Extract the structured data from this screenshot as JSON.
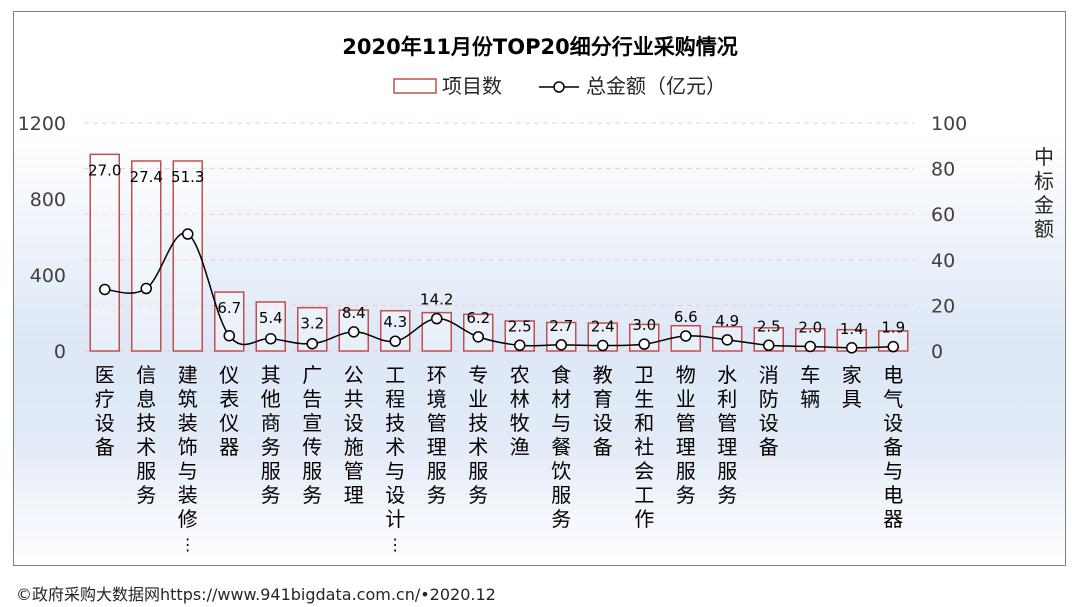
{
  "chart_data": {
    "type": "bar",
    "title": "2020年11月份TOP20细分行业采购情况",
    "categories": [
      "医疗设备",
      "信息技术服务",
      "建筑装饰与装修…",
      "仪表仪器",
      "其他商务服务",
      "广告宣传服务",
      "公共设施管理",
      "工程技术与设计…",
      "环境管理服务",
      "专业技术服务",
      "农林牧渔",
      "食材与餐饮服务",
      "教育设备",
      "卫生和社会工作",
      "物业管理服务",
      "水利管理服务",
      "消防设备",
      "车辆",
      "家具",
      "电气设备与电器"
    ],
    "series": [
      {
        "name": "项目数",
        "chart": "bar",
        "axis": "left",
        "values": [
          1035,
          1000,
          1000,
          310,
          258,
          228,
          215,
          212,
          202,
          193,
          158,
          150,
          147,
          140,
          133,
          128,
          122,
          117,
          112,
          106
        ]
      },
      {
        "name": "总金额（亿元）",
        "chart": "line",
        "axis": "right",
        "values": [
          27.0,
          27.4,
          51.3,
          6.7,
          5.4,
          3.2,
          8.4,
          4.3,
          14.2,
          6.2,
          2.5,
          2.7,
          2.4,
          3.0,
          6.6,
          4.9,
          2.5,
          2.0,
          1.4,
          1.9
        ],
        "labels": [
          "27.0",
          "27.4",
          "51.3",
          "6.7",
          "5.4",
          "3.2",
          "8.4",
          "4.3",
          "14.2",
          "6.2",
          "2.5",
          "2.7",
          "2.4",
          "3.0",
          "6.6",
          "4.9",
          "2.5",
          "2.0",
          "1.4",
          "1.9"
        ]
      }
    ],
    "y_left": {
      "ticks": [
        "0",
        "400",
        "800",
        "1200"
      ],
      "ylim": [
        0,
        1200
      ]
    },
    "y_right": {
      "label": "中标金额",
      "ticks": [
        "0",
        "20",
        "40",
        "60",
        "80",
        "100"
      ],
      "ylim": [
        0,
        100
      ]
    },
    "legend": {
      "position": "top-center",
      "items": [
        "项目数",
        "总金额（亿元）"
      ]
    },
    "grid": "dashed-horizontal",
    "colors": {
      "bar_edge": "#c0504d",
      "line": "#000000",
      "grid": "#f2c9c9",
      "axis_text": "#404040"
    }
  },
  "footer": "©政府采购大数据网https://www.941bigdata.com.cn/•2020.12"
}
